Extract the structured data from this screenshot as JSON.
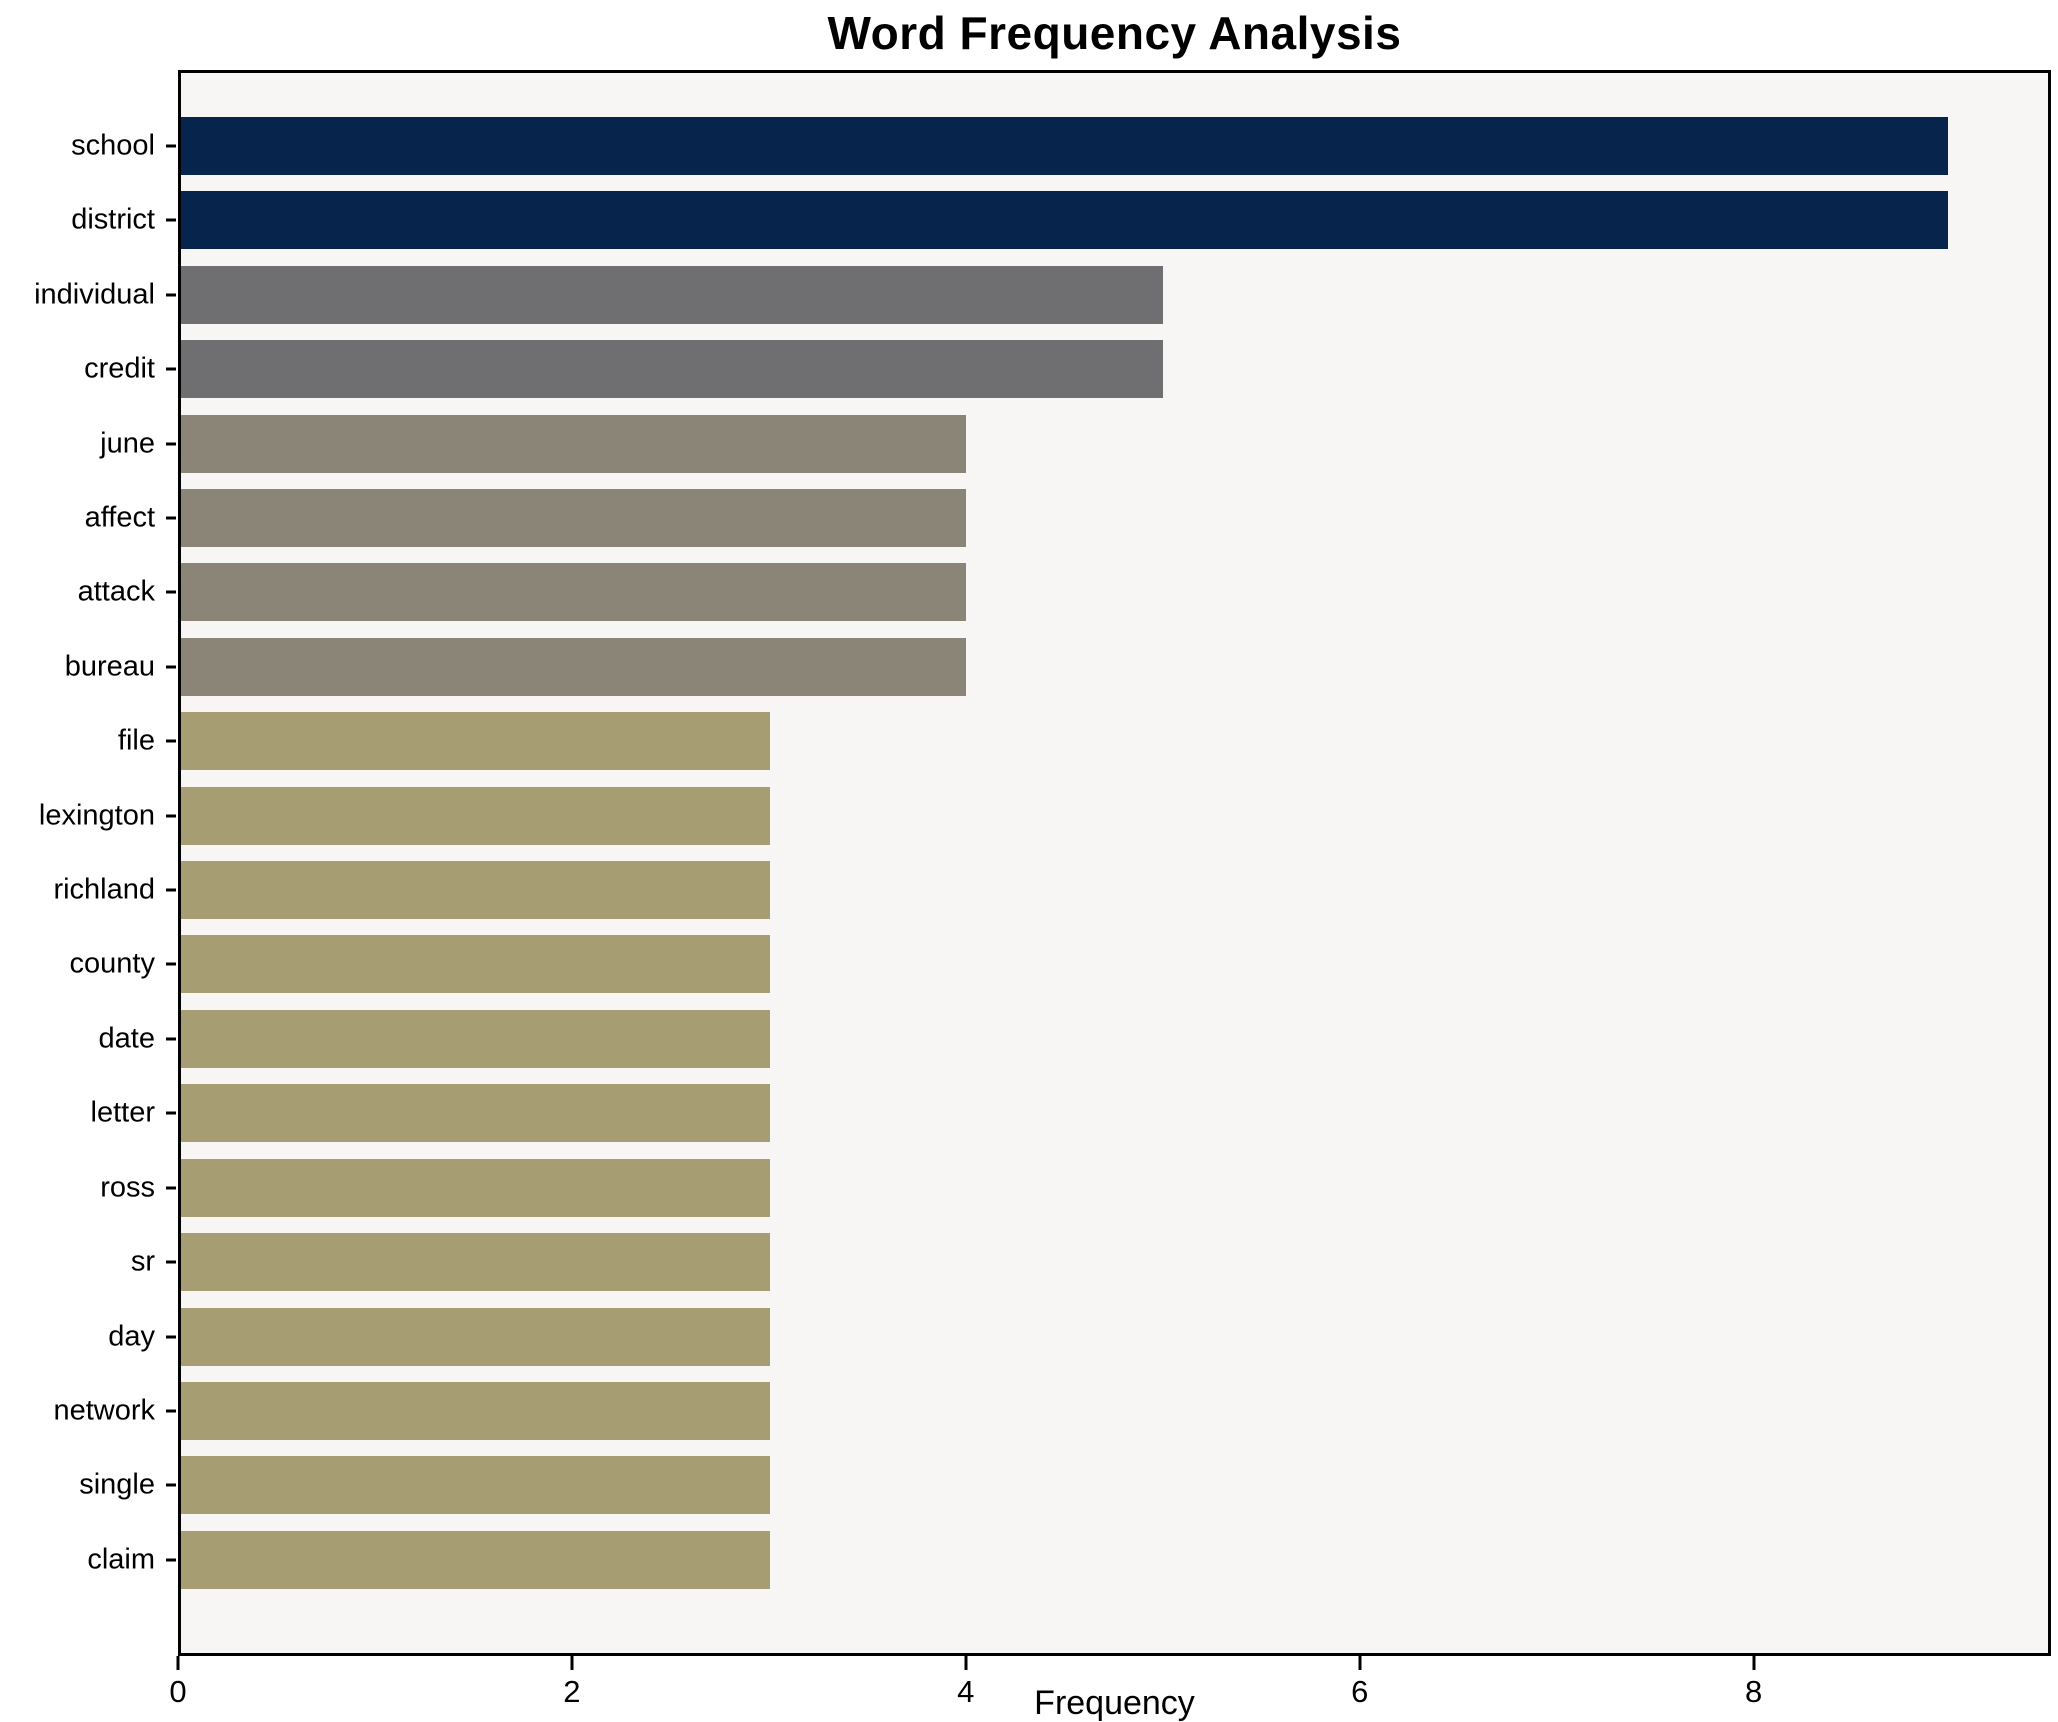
{
  "chart_data": {
    "type": "bar",
    "orientation": "horizontal",
    "title": "Word Frequency Analysis",
    "xlabel": "Frequency",
    "ylabel": "",
    "xlim": [
      0,
      9.51
    ],
    "xticks": [
      0,
      2,
      4,
      6,
      8
    ],
    "grid": false,
    "legend": "none",
    "categories": [
      "school",
      "district",
      "individual",
      "credit",
      "june",
      "affect",
      "attack",
      "bureau",
      "file",
      "lexington",
      "richland",
      "county",
      "date",
      "letter",
      "ross",
      "sr",
      "day",
      "network",
      "single",
      "claim"
    ],
    "values": [
      9,
      9,
      5,
      5,
      4,
      4,
      4,
      4,
      3,
      3,
      3,
      3,
      3,
      3,
      3,
      3,
      3,
      3,
      3,
      3
    ],
    "bar_colors": [
      "#06244c",
      "#06244c",
      "#6f6e71",
      "#6f6e71",
      "#8a8577",
      "#8a8577",
      "#8a8577",
      "#8a8577",
      "#a69d72",
      "#a69d72",
      "#a69d72",
      "#a69d72",
      "#a69d72",
      "#a69d72",
      "#a69d72",
      "#a69d72",
      "#a69d72",
      "#a69d72",
      "#a69d72",
      "#a69d72"
    ]
  },
  "colors": {
    "figure_background": "#ffffff",
    "plot_background": "#f7f6f4",
    "axis": "#000000",
    "text": "#000000"
  }
}
